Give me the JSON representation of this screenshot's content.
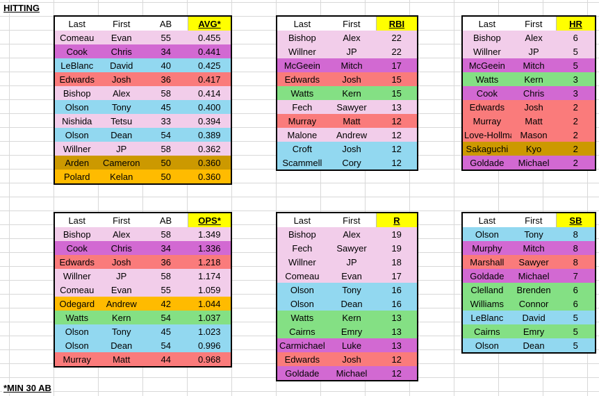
{
  "title": "HITTING",
  "note": "*MIN 30 AB",
  "colors": {
    "pink": "#f2cdea",
    "purple": "#d269d2",
    "blue": "#92d8f0",
    "red": "#fa7b7b",
    "green": "#84e084",
    "gold": "#cc9900",
    "orange": "#ffbb00",
    "highlight": "#ffff00"
  },
  "tables": [
    {
      "id": "avg",
      "headers": [
        "Last",
        "First",
        "AB",
        "AVG*"
      ],
      "rows": [
        {
          "c": "pink",
          "v": [
            "Comeau",
            "Evan",
            "55",
            "0.455"
          ]
        },
        {
          "c": "purple",
          "v": [
            "Cook",
            "Chris",
            "34",
            "0.441"
          ]
        },
        {
          "c": "blue",
          "v": [
            "LeBlanc",
            "David",
            "40",
            "0.425"
          ]
        },
        {
          "c": "red",
          "v": [
            "Edwards",
            "Josh",
            "36",
            "0.417"
          ]
        },
        {
          "c": "pink",
          "v": [
            "Bishop",
            "Alex",
            "58",
            "0.414"
          ]
        },
        {
          "c": "blue",
          "v": [
            "Olson",
            "Tony",
            "45",
            "0.400"
          ]
        },
        {
          "c": "pink",
          "v": [
            "Nishida",
            "Tetsu",
            "33",
            "0.394"
          ]
        },
        {
          "c": "blue",
          "v": [
            "Olson",
            "Dean",
            "54",
            "0.389"
          ]
        },
        {
          "c": "pink",
          "v": [
            "Willner",
            "JP",
            "58",
            "0.362"
          ]
        },
        {
          "c": "gold",
          "v": [
            "Arden",
            "Cameron",
            "50",
            "0.360"
          ]
        },
        {
          "c": "orange",
          "v": [
            "Polard",
            "Kelan",
            "50",
            "0.360"
          ]
        }
      ]
    },
    {
      "id": "rbi",
      "headers": [
        "Last",
        "First",
        "RBI"
      ],
      "rows": [
        {
          "c": "pink",
          "v": [
            "Bishop",
            "Alex",
            "22"
          ]
        },
        {
          "c": "pink",
          "v": [
            "Willner",
            "JP",
            "22"
          ]
        },
        {
          "c": "purple",
          "v": [
            "McGeein",
            "Mitch",
            "17"
          ]
        },
        {
          "c": "red",
          "v": [
            "Edwards",
            "Josh",
            "15"
          ]
        },
        {
          "c": "green",
          "v": [
            "Watts",
            "Kern",
            "15"
          ]
        },
        {
          "c": "pink",
          "v": [
            "Fech",
            "Sawyer",
            "13"
          ]
        },
        {
          "c": "red",
          "v": [
            "Murray",
            "Matt",
            "12"
          ]
        },
        {
          "c": "pink",
          "v": [
            "Malone",
            "Andrew",
            "12"
          ]
        },
        {
          "c": "blue",
          "v": [
            "Croft",
            "Josh",
            "12"
          ]
        },
        {
          "c": "blue",
          "v": [
            "Scammell",
            "Cory",
            "12"
          ]
        }
      ]
    },
    {
      "id": "hr",
      "headers": [
        "Last",
        "First",
        "HR"
      ],
      "rows": [
        {
          "c": "pink",
          "v": [
            "Bishop",
            "Alex",
            "6"
          ]
        },
        {
          "c": "pink",
          "v": [
            "Willner",
            "JP",
            "5"
          ]
        },
        {
          "c": "purple",
          "v": [
            "McGeein",
            "Mitch",
            "5"
          ]
        },
        {
          "c": "green",
          "v": [
            "Watts",
            "Kern",
            "3"
          ]
        },
        {
          "c": "purple",
          "v": [
            "Cook",
            "Chris",
            "3"
          ]
        },
        {
          "c": "red",
          "v": [
            "Edwards",
            "Josh",
            "2"
          ]
        },
        {
          "c": "red",
          "v": [
            "Murray",
            "Matt",
            "2"
          ]
        },
        {
          "c": "red",
          "v": [
            "Love-Hollman",
            "Mason",
            "2"
          ]
        },
        {
          "c": "gold",
          "v": [
            "Sakaguchi",
            "Kyo",
            "2"
          ]
        },
        {
          "c": "purple",
          "v": [
            "Goldade",
            "Michael",
            "2"
          ]
        }
      ]
    },
    {
      "id": "ops",
      "headers": [
        "Last",
        "First",
        "AB",
        "OPS*"
      ],
      "rows": [
        {
          "c": "pink",
          "v": [
            "Bishop",
            "Alex",
            "58",
            "1.349"
          ]
        },
        {
          "c": "purple",
          "v": [
            "Cook",
            "Chris",
            "34",
            "1.336"
          ]
        },
        {
          "c": "red",
          "v": [
            "Edwards",
            "Josh",
            "36",
            "1.218"
          ]
        },
        {
          "c": "pink",
          "v": [
            "Willner",
            "JP",
            "58",
            "1.174"
          ]
        },
        {
          "c": "pink",
          "v": [
            "Comeau",
            "Evan",
            "55",
            "1.059"
          ]
        },
        {
          "c": "orange",
          "v": [
            "Odegard",
            "Andrew",
            "42",
            "1.044"
          ]
        },
        {
          "c": "green",
          "v": [
            "Watts",
            "Kern",
            "54",
            "1.037"
          ]
        },
        {
          "c": "blue",
          "v": [
            "Olson",
            "Tony",
            "45",
            "1.023"
          ]
        },
        {
          "c": "blue",
          "v": [
            "Olson",
            "Dean",
            "54",
            "0.996"
          ]
        },
        {
          "c": "red",
          "v": [
            "Murray",
            "Matt",
            "44",
            "0.968"
          ]
        }
      ]
    },
    {
      "id": "r",
      "headers": [
        "Last",
        "First",
        "R"
      ],
      "rows": [
        {
          "c": "pink",
          "v": [
            "Bishop",
            "Alex",
            "19"
          ]
        },
        {
          "c": "pink",
          "v": [
            "Fech",
            "Sawyer",
            "19"
          ]
        },
        {
          "c": "pink",
          "v": [
            "Willner",
            "JP",
            "18"
          ]
        },
        {
          "c": "pink",
          "v": [
            "Comeau",
            "Evan",
            "17"
          ]
        },
        {
          "c": "blue",
          "v": [
            "Olson",
            "Tony",
            "16"
          ]
        },
        {
          "c": "blue",
          "v": [
            "Olson",
            "Dean",
            "16"
          ]
        },
        {
          "c": "green",
          "v": [
            "Watts",
            "Kern",
            "13"
          ]
        },
        {
          "c": "green",
          "v": [
            "Cairns",
            "Emry",
            "13"
          ]
        },
        {
          "c": "purple",
          "v": [
            "Carmichael",
            "Luke",
            "13"
          ]
        },
        {
          "c": "red",
          "v": [
            "Edwards",
            "Josh",
            "12"
          ]
        },
        {
          "c": "purple",
          "v": [
            "Goldade",
            "Michael",
            "12"
          ]
        }
      ]
    },
    {
      "id": "sb",
      "headers": [
        "Last",
        "First",
        "SB"
      ],
      "rows": [
        {
          "c": "blue",
          "v": [
            "Olson",
            "Tony",
            "8"
          ]
        },
        {
          "c": "purple",
          "v": [
            "Murphy",
            "Mitch",
            "8"
          ]
        },
        {
          "c": "red",
          "v": [
            "Marshall",
            "Sawyer",
            "8"
          ]
        },
        {
          "c": "purple",
          "v": [
            "Goldade",
            "Michael",
            "7"
          ]
        },
        {
          "c": "green",
          "v": [
            "Clelland",
            "Brenden",
            "6"
          ]
        },
        {
          "c": "green",
          "v": [
            "Williams",
            "Connor",
            "6"
          ]
        },
        {
          "c": "blue",
          "v": [
            "LeBlanc",
            "David",
            "5"
          ]
        },
        {
          "c": "green",
          "v": [
            "Cairns",
            "Emry",
            "5"
          ]
        },
        {
          "c": "blue",
          "v": [
            "Olson",
            "Dean",
            "5"
          ]
        }
      ]
    }
  ]
}
